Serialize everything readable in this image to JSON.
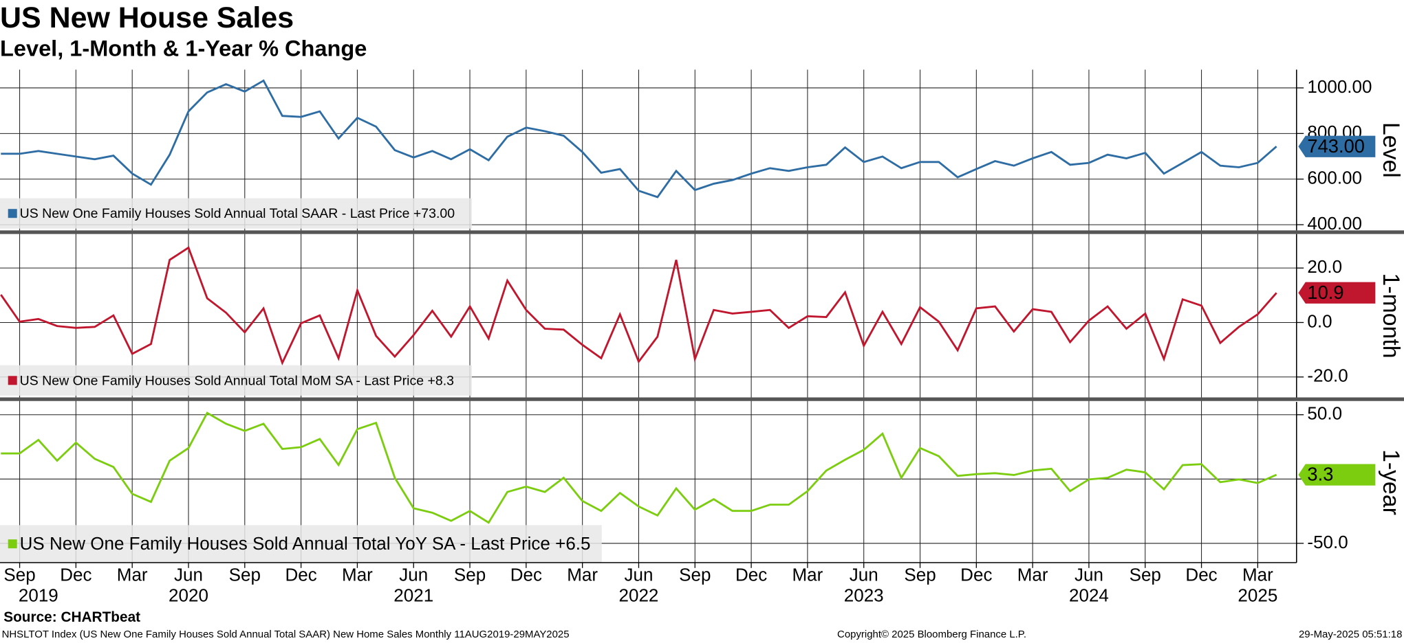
{
  "header": {
    "title": "US New House Sales",
    "subtitle": "Level, 1-Month & 1-Year % Change"
  },
  "x_axis": {
    "categories": [
      null,
      "Sep",
      null,
      null,
      "Dec",
      null,
      null,
      "Mar",
      null,
      null,
      "Jun",
      null,
      null,
      "Sep",
      null,
      null,
      "Dec",
      null,
      null,
      "Mar",
      null,
      null,
      "Jun",
      null,
      null,
      "Sep",
      null,
      null,
      "Dec",
      null,
      null,
      "Mar",
      null,
      null,
      "Jun",
      null,
      null,
      "Sep",
      null,
      null,
      "Dec",
      null,
      null,
      "Mar",
      null,
      null,
      "Jun",
      null,
      null,
      "Sep",
      null,
      null,
      "Dec",
      null,
      null,
      "Mar",
      null,
      null,
      "Jun",
      null,
      null,
      "Sep",
      null,
      null,
      "Dec",
      null,
      null,
      "Mar",
      null
    ],
    "years": [
      null,
      null,
      "2019",
      null,
      null,
      null,
      null,
      null,
      null,
      null,
      "2020",
      null,
      null,
      null,
      null,
      null,
      null,
      null,
      null,
      null,
      null,
      null,
      "2021",
      null,
      null,
      null,
      null,
      null,
      null,
      null,
      null,
      null,
      null,
      null,
      "2022",
      null,
      null,
      null,
      null,
      null,
      null,
      null,
      null,
      null,
      null,
      null,
      "2023",
      null,
      null,
      null,
      null,
      null,
      null,
      null,
      null,
      null,
      null,
      null,
      "2024",
      null,
      null,
      null,
      null,
      null,
      null,
      null,
      null,
      "2025",
      null
    ]
  },
  "chart_data": [
    {
      "type": "line",
      "axis_title": "Level",
      "ylim": [
        375,
        1080
      ],
      "yticks": [
        {
          "value": 400,
          "label": "400.00"
        },
        {
          "value": 600,
          "label": "600.00"
        },
        {
          "value": 800,
          "label": "800.00"
        },
        {
          "value": 1000,
          "label": "1000.00"
        }
      ],
      "grid": true,
      "last_label": "743.00",
      "series": [
        {
          "name": "US New One Family Houses Sold Annual Total SAAR - Last Price +73.00",
          "color": "#2e6da4",
          "values": [
            711,
            711,
            723,
            711,
            699,
            687,
            703,
            624,
            576,
            707,
            897,
            980,
            1016,
            984,
            1032,
            877,
            873,
            897,
            778,
            869,
            830,
            727,
            695,
            723,
            687,
            731,
            683,
            786,
            826,
            810,
            790,
            719,
            628,
            644,
            549,
            521,
            636,
            552,
            580,
            596,
            624,
            648,
            636,
            652,
            663,
            739,
            675,
            699,
            648,
            675,
            675,
            608,
            644,
            679,
            659,
            691,
            719,
            663,
            671,
            707,
            691,
            715,
            624,
            671,
            719,
            659,
            652,
            671,
            743
          ]
        }
      ]
    },
    {
      "type": "line",
      "axis_title": "1-month",
      "ylim": [
        -27.5,
        32.5
      ],
      "yticks": [
        {
          "value": -20,
          "label": "-20.0"
        },
        {
          "value": 0,
          "label": "0.0"
        },
        {
          "value": 20,
          "label": "20.0"
        }
      ],
      "grid": true,
      "last_label": "10.9",
      "series": [
        {
          "name": "US New One Family Houses Sold Annual Total MoM SA - Last Price +8.3",
          "color": "#c0172f",
          "values": [
            10.2,
            0.3,
            1.3,
            -1.3,
            -2,
            -1.6,
            2.6,
            -11.5,
            -7.9,
            23,
            27.5,
            8.9,
            3.6,
            -3.6,
            5.2,
            -14.8,
            -0.3,
            2.6,
            -13.1,
            11.8,
            -4.9,
            -12.5,
            -4.6,
            4.3,
            -5.2,
            5.9,
            -5.9,
            15.4,
            4.6,
            -2.3,
            -2.6,
            -8.2,
            -13.1,
            3,
            -14.4,
            -5.2,
            23,
            -13.4,
            4.6,
            3.3,
            3.9,
            4.6,
            -2,
            2.3,
            2,
            11.1,
            -8.5,
            3.9,
            -7.9,
            5.6,
            0.3,
            -10.2,
            5.2,
            5.9,
            -3.3,
            4.9,
            3.9,
            -7.2,
            0.7,
            5.9,
            -2.3,
            3.3,
            -13.4,
            8.5,
            6.2,
            -7.5,
            -1.6,
            3,
            10.9
          ]
        }
      ]
    },
    {
      "type": "line",
      "axis_title": "1-year",
      "ylim": [
        -65,
        60
      ],
      "yticks": [
        {
          "value": -50,
          "label": "-50.0"
        },
        {
          "value": 0,
          "label": null
        },
        {
          "value": 50,
          "label": "50.0"
        }
      ],
      "grid": true,
      "last_label": "3.3",
      "series": [
        {
          "name": "US New One Family Houses Sold Annual Total YoY SA - Last Price +6.5",
          "color": "#7ccd10",
          "values": [
            19.9,
            19.9,
            30.4,
            14.3,
            28.3,
            15.7,
            9.4,
            -11.5,
            -17.8,
            14.3,
            24.1,
            51.4,
            43,
            37.4,
            43,
            23.4,
            24.8,
            31.1,
            11,
            38.8,
            43.7,
            1,
            -22.7,
            -26.2,
            -32.5,
            -24.8,
            -33.9,
            -10.1,
            -5.9,
            -10.1,
            1,
            -17.1,
            -24.8,
            -10.8,
            -21.3,
            -28.3,
            -7.3,
            -23.8,
            -15.7,
            -24.8,
            -24.8,
            -19.9,
            -19.9,
            -9.4,
            6.6,
            15,
            22.7,
            35.3,
            1,
            24.1,
            17.8,
            2.4,
            3.8,
            4.5,
            3.1,
            6.6,
            8,
            -9.4,
            -0.3,
            1,
            7.3,
            5.2,
            -8,
            10.8,
            11.5,
            -2.4,
            -0.3,
            -3.1,
            3.3
          ]
        }
      ]
    }
  ],
  "footer": {
    "source": "Source: CHARTbeat",
    "description": "NHSLTOT Index (US New One Family Houses Sold Annual Total SAAR) New Home Sales  Monthly 11AUG2019-29MAY2025",
    "copyright": "Copyright© 2025 Bloomberg Finance L.P.",
    "timestamp": "29-May-2025 05:51:18"
  }
}
